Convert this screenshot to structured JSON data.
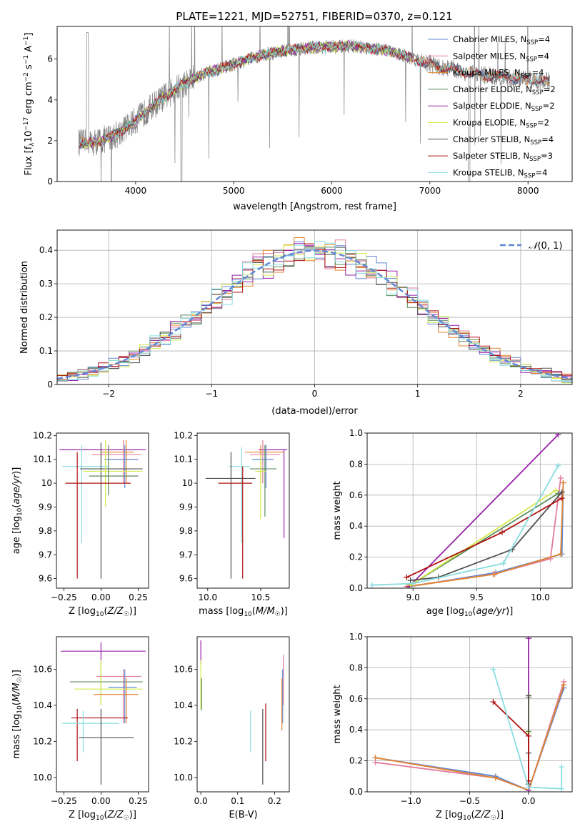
{
  "colors": {
    "chab_miles": "#5f87d6",
    "salp_miles": "#e07d9b",
    "krou_miles": "#e08530",
    "chab_elodie": "#5a8a5a",
    "salp_elodie": "#9922aa",
    "krou_elodie": "#d4ea4a",
    "chab_stelib": "#505050",
    "salp_stelib": "#b01010",
    "krou_stelib": "#88dde0",
    "data": "#808080"
  },
  "chart_data": [
    {
      "id": "spectrum",
      "type": "line",
      "title": "PLATE=1221, MJD=52751, FIBERID=0370, z=0.121",
      "xlabel": "wavelength [Angstrom, rest frame]",
      "ylabel": "Flux [f_λ 10^-17 erg cm^-2 s^-1 A^-1]",
      "xlim": [
        3200,
        8450
      ],
      "ylim": [
        0,
        7.6
      ],
      "xticks": [
        4000,
        5000,
        6000,
        7000,
        8000
      ],
      "yticks": [
        0,
        2,
        4,
        6
      ],
      "grid": false,
      "legend_position": "upper right",
      "legend": [
        {
          "label": "Chabrier MILES, N_SSP=4",
          "color_key": "chab_miles"
        },
        {
          "label": "Salpeter MILES, N_SSP=4",
          "color_key": "salp_miles"
        },
        {
          "label": "Kroupa MILES, N_SSP=4",
          "color_key": "krou_miles"
        },
        {
          "label": "Chabrier ELODIE, N_SSP=2",
          "color_key": "chab_elodie"
        },
        {
          "label": "Salpeter ELODIE, N_SSP=2",
          "color_key": "salp_elodie"
        },
        {
          "label": "Kroupa ELODIE, N_SSP=2",
          "color_key": "krou_elodie"
        },
        {
          "label": "Chabrier STELIB, N_SSP=4",
          "color_key": "chab_stelib"
        },
        {
          "label": "Salpeter STELIB, N_SSP=3",
          "color_key": "salp_stelib"
        },
        {
          "label": "Kroupa STELIB, N_SSP=4",
          "color_key": "krou_stelib"
        }
      ],
      "continuum": {
        "x": [
          3350,
          3500,
          3650,
          3800,
          3950,
          4100,
          4250,
          4400,
          4550,
          4700,
          4850,
          5000,
          5150,
          5300,
          5450,
          5600,
          5750,
          5900,
          6050,
          6200,
          6350,
          6500,
          6650,
          6800,
          6950,
          7100,
          7250,
          7400,
          7550,
          7700,
          7850,
          8000,
          8200
        ],
        "y": [
          2.0,
          1.85,
          2.0,
          2.3,
          2.8,
          3.4,
          4.0,
          4.5,
          4.95,
          5.3,
          5.5,
          5.75,
          6.0,
          6.2,
          6.35,
          6.45,
          6.55,
          6.6,
          6.6,
          6.65,
          6.55,
          6.5,
          6.3,
          6.05,
          5.85,
          5.6,
          5.5,
          5.3,
          5.2,
          5.15,
          5.05,
          5.0,
          4.9
        ]
      }
    },
    {
      "id": "residuals",
      "type": "line",
      "xlabel": "(data-model)/error",
      "ylabel": "Normed distribution",
      "xlim": [
        -2.5,
        2.5
      ],
      "ylim": [
        0,
        0.46
      ],
      "xticks": [
        -2,
        -1,
        0,
        1,
        2
      ],
      "yticks": [
        0.0,
        0.1,
        0.2,
        0.3,
        0.4
      ],
      "grid": true,
      "legend": [
        {
          "label": "N(0,1)",
          "color_key": "chab_miles"
        }
      ],
      "gaussian": {
        "mu": 0,
        "sigma": 1
      }
    },
    {
      "id": "age_vs_Z",
      "type": "scatter",
      "xlabel": "Z [log10(Z/Z☉)]",
      "ylabel": "age [log10(age/yr)]",
      "xlim": [
        -0.3,
        0.32
      ],
      "ylim": [
        9.56,
        10.21
      ],
      "xticks": [
        -0.25,
        0.0,
        0.25
      ],
      "xticklabels": [
        "−0.25",
        "0.00",
        "0.25"
      ],
      "yticks": [
        9.6,
        9.7,
        9.8,
        9.9,
        10.0,
        10.1,
        10.2
      ],
      "points": [
        {
          "k": "salp_elodie",
          "x": 0.0,
          "xe": [
            -0.28,
            0.3
          ],
          "y": 10.14,
          "ye": [
            10.14,
            10.14
          ]
        },
        {
          "k": "salp_miles",
          "x": 0.15,
          "xe": [
            -0.06,
            0.27
          ],
          "y": 10.12,
          "ye": [
            10.0,
            10.18
          ]
        },
        {
          "k": "krou_miles",
          "x": 0.17,
          "xe": [
            0.0,
            0.22
          ],
          "y": 10.13,
          "ye": [
            10.0,
            10.18
          ]
        },
        {
          "k": "chab_miles",
          "x": 0.16,
          "xe": [
            0.02,
            0.25
          ],
          "y": 10.1,
          "ye": [
            9.98,
            10.16
          ]
        },
        {
          "k": "krou_stelib",
          "x": -0.13,
          "xe": [
            -0.26,
            0.05
          ],
          "y": 10.07,
          "ye": [
            9.75,
            10.16
          ]
        },
        {
          "k": "chab_stelib",
          "x": 0.0,
          "xe": [
            -0.14,
            0.28
          ],
          "y": 10.06,
          "ye": [
            9.6,
            10.17
          ]
        },
        {
          "k": "krou_elodie",
          "x": 0.03,
          "xe": [
            -0.12,
            0.28
          ],
          "y": 10.05,
          "ye": [
            9.9,
            10.18
          ]
        },
        {
          "k": "chab_elodie",
          "x": 0.05,
          "xe": [
            -0.08,
            0.25
          ],
          "y": 10.03,
          "ye": [
            9.95,
            10.16
          ]
        },
        {
          "k": "salp_stelib",
          "x": -0.16,
          "xe": [
            -0.24,
            0.2
          ],
          "y": 10.0,
          "ye": [
            9.6,
            10.13
          ]
        }
      ]
    },
    {
      "id": "age_vs_mass",
      "type": "scatter",
      "xlabel": "mass [log10(M/M☉)]",
      "xlim": [
        9.9,
        10.77
      ],
      "ylim": [
        9.56,
        10.21
      ],
      "xticks": [
        10.0,
        10.5
      ],
      "xticklabels": [
        "10.0",
        "10.5"
      ],
      "yticks": [
        9.6,
        9.7,
        9.8,
        9.9,
        10.0,
        10.1,
        10.2
      ],
      "points": [
        {
          "k": "salp_elodie",
          "x": 10.72,
          "xe": [
            10.48,
            10.75
          ],
          "y": 10.14,
          "ye": [
            9.77,
            10.14
          ]
        },
        {
          "k": "krou_miles",
          "x": 10.5,
          "xe": [
            10.35,
            10.72
          ],
          "y": 10.13,
          "ye": [
            10.0,
            10.16
          ]
        },
        {
          "k": "salp_miles",
          "x": 10.52,
          "xe": [
            10.4,
            10.68
          ],
          "y": 10.12,
          "ye": [
            10.0,
            10.18
          ]
        },
        {
          "k": "chab_miles",
          "x": 10.55,
          "xe": [
            10.42,
            10.62
          ],
          "y": 10.1,
          "ye": [
            9.98,
            10.16
          ]
        },
        {
          "k": "krou_stelib",
          "x": 10.32,
          "xe": [
            10.2,
            10.4
          ],
          "y": 10.07,
          "ye": [
            9.75,
            10.15
          ]
        },
        {
          "k": "chab_elodie",
          "x": 10.54,
          "xe": [
            10.4,
            10.65
          ],
          "y": 10.06,
          "ye": [
            9.86,
            10.16
          ]
        },
        {
          "k": "krou_elodie",
          "x": 10.5,
          "xe": [
            10.45,
            10.55
          ],
          "y": 10.05,
          "ye": [
            9.85,
            10.12
          ]
        },
        {
          "k": "chab_stelib",
          "x": 10.22,
          "xe": [
            9.98,
            10.45
          ],
          "y": 10.02,
          "ye": [
            9.6,
            10.13
          ]
        },
        {
          "k": "salp_stelib",
          "x": 10.33,
          "xe": [
            10.1,
            10.42
          ],
          "y": 10.0,
          "ye": [
            9.6,
            10.07
          ]
        }
      ]
    },
    {
      "id": "weight_vs_age",
      "type": "line",
      "xlabel": "age [log10(age/yr)]",
      "ylabel": "mass weight",
      "xlim": [
        8.64,
        10.25
      ],
      "ylim": [
        0,
        1.0
      ],
      "xticks": [
        9.0,
        9.5,
        10.0
      ],
      "xticklabels": [
        "9.0",
        "9.5",
        "10.0"
      ],
      "yticks": [
        0.0,
        0.2,
        0.4,
        0.6,
        0.8,
        1.0
      ],
      "yticklabels": [
        "0.0",
        "0.2",
        "0.4",
        "0.6",
        "0.8",
        "1.0"
      ],
      "grid": true,
      "series": [
        {
          "k": "chab_miles",
          "x": [
            8.97,
            9.65,
            10.17,
            10.18
          ],
          "y": [
            0.01,
            0.1,
            0.22,
            0.68
          ]
        },
        {
          "k": "salp_miles",
          "x": [
            8.95,
            9.63,
            10.08,
            10.16
          ],
          "y": [
            0.01,
            0.09,
            0.19,
            0.71
          ]
        },
        {
          "k": "krou_miles",
          "x": [
            8.96,
            9.64,
            10.16,
            10.18
          ],
          "y": [
            0.01,
            0.09,
            0.22,
            0.68
          ]
        },
        {
          "k": "chab_elodie",
          "x": [
            8.98,
            10.14
          ],
          "y": [
            0.02,
            0.61
          ]
        },
        {
          "k": "salp_elodie",
          "x": [
            8.97,
            10.14
          ],
          "y": [
            0.01,
            0.99
          ]
        },
        {
          "k": "krou_elodie",
          "x": [
            8.98,
            10.12
          ],
          "y": [
            0.02,
            0.63
          ]
        },
        {
          "k": "chab_stelib",
          "x": [
            8.98,
            9.2,
            9.78,
            10.17
          ],
          "y": [
            0.05,
            0.07,
            0.25,
            0.62
          ]
        },
        {
          "k": "salp_stelib",
          "x": [
            8.95,
            9.7,
            10.17
          ],
          "y": [
            0.07,
            0.36,
            0.58
          ]
        },
        {
          "k": "krou_stelib",
          "x": [
            8.68,
            9.0,
            9.71,
            10.14
          ],
          "y": [
            0.02,
            0.03,
            0.16,
            0.79
          ]
        }
      ]
    },
    {
      "id": "mass_vs_Z",
      "type": "scatter",
      "xlabel": "Z [log10(Z/Z☉)]",
      "ylabel": "mass [log10(M/M☉)]",
      "xlim": [
        -0.3,
        0.32
      ],
      "ylim": [
        9.92,
        10.78
      ],
      "xticks": [
        -0.25,
        0.0,
        0.25
      ],
      "xticklabels": [
        "−0.25",
        "0.00",
        "0.25"
      ],
      "yticks": [
        10.0,
        10.2,
        10.4,
        10.6
      ],
      "yticklabels": [
        "10.0",
        "10.2",
        "10.4",
        "10.6"
      ],
      "points": [
        {
          "k": "salp_elodie",
          "x": 0.0,
          "xe": [
            -0.27,
            0.3
          ],
          "y": 10.7,
          "ye": [
            10.65,
            10.75
          ]
        },
        {
          "k": "salp_miles",
          "x": 0.15,
          "xe": [
            -0.03,
            0.27
          ],
          "y": 10.56,
          "ye": [
            10.3,
            10.6
          ]
        },
        {
          "k": "chab_elodie",
          "x": 0.0,
          "xe": [
            -0.21,
            0.28
          ],
          "y": 10.53,
          "ye": [
            10.4,
            10.65
          ]
        },
        {
          "k": "chab_miles",
          "x": 0.16,
          "xe": [
            0.05,
            0.24
          ],
          "y": 10.5,
          "ye": [
            10.3,
            10.6
          ]
        },
        {
          "k": "krou_elodie",
          "x": 0.0,
          "xe": [
            -0.18,
            0.28
          ],
          "y": 10.49,
          "ye": [
            10.4,
            10.65
          ]
        },
        {
          "k": "krou_miles",
          "x": 0.17,
          "xe": [
            -0.05,
            0.25
          ],
          "y": 10.46,
          "ye": [
            10.3,
            10.55
          ]
        },
        {
          "k": "salp_stelib",
          "x": -0.16,
          "xe": [
            -0.2,
            0.18
          ],
          "y": 10.33,
          "ye": [
            10.09,
            10.38
          ]
        },
        {
          "k": "krou_stelib",
          "x": -0.12,
          "xe": [
            -0.26,
            0.12
          ],
          "y": 10.3,
          "ye": [
            10.14,
            10.37
          ]
        },
        {
          "k": "chab_stelib",
          "x": 0.0,
          "xe": [
            -0.15,
            0.22
          ],
          "y": 10.22,
          "ye": [
            9.96,
            10.38
          ]
        }
      ]
    },
    {
      "id": "mass_vs_ebv",
      "type": "scatter",
      "xlabel": "E(B-V)",
      "xlim": [
        -0.01,
        0.24
      ],
      "ylim": [
        9.92,
        10.78
      ],
      "xticks": [
        0.0,
        0.1,
        0.2
      ],
      "xticklabels": [
        "0.0",
        "0.1",
        "0.2"
      ],
      "yticks": [
        10.0,
        10.2,
        10.4,
        10.6
      ],
      "yticklabels": [
        "10.0",
        "10.2",
        "10.4",
        "10.6"
      ],
      "points": [
        {
          "k": "salp_elodie",
          "x": 0.0,
          "xe": [
            0.0,
            0.0
          ],
          "y": 10.7,
          "ye": [
            10.63,
            10.76
          ]
        },
        {
          "k": "krou_elodie",
          "x": 0.0,
          "xe": [
            0.0,
            0.0
          ],
          "y": 10.5,
          "ye": [
            10.38,
            10.65
          ]
        },
        {
          "k": "chab_elodie",
          "x": 0.002,
          "xe": [
            0.002,
            0.002
          ],
          "y": 10.45,
          "ye": [
            10.37,
            10.55
          ]
        },
        {
          "k": "salp_miles",
          "x": 0.224,
          "xe": [
            0.224,
            0.224
          ],
          "y": 10.55,
          "ye": [
            10.4,
            10.68
          ]
        },
        {
          "k": "chab_miles",
          "x": 0.222,
          "xe": [
            0.222,
            0.222
          ],
          "y": 10.5,
          "ye": [
            10.3,
            10.6
          ]
        },
        {
          "k": "krou_miles",
          "x": 0.22,
          "xe": [
            0.22,
            0.22
          ],
          "y": 10.45,
          "ye": [
            10.26,
            10.55
          ]
        },
        {
          "k": "krou_stelib",
          "x": 0.135,
          "xe": [
            0.135,
            0.135
          ],
          "y": 10.3,
          "ye": [
            10.14,
            10.37
          ]
        },
        {
          "k": "chab_stelib",
          "x": 0.168,
          "xe": [
            0.168,
            0.168
          ],
          "y": 10.22,
          "ye": [
            9.96,
            10.38
          ]
        },
        {
          "k": "salp_stelib",
          "x": 0.176,
          "xe": [
            0.176,
            0.176
          ],
          "y": 10.3,
          "ye": [
            10.09,
            10.41
          ]
        }
      ]
    },
    {
      "id": "weight_vs_Z",
      "type": "line",
      "xlabel": "Z [log10(Z/Z☉)]",
      "ylabel": "mass weight",
      "xlim": [
        -1.37,
        0.37
      ],
      "ylim": [
        0,
        1.0
      ],
      "xticks": [
        -1.0,
        -0.5,
        0.0
      ],
      "xticklabels": [
        "−1.0",
        "−0.5",
        "0.0"
      ],
      "yticks": [
        0.0,
        0.2,
        0.4,
        0.6,
        0.8,
        1.0
      ],
      "yticklabels": [
        "0.0",
        "0.2",
        "0.4",
        "0.6",
        "0.8",
        "1.0"
      ],
      "grid": true,
      "series": [
        {
          "k": "chab_miles",
          "x": [
            -1.3,
            -0.28,
            0.0,
            0.3
          ],
          "y": [
            0.22,
            0.1,
            0.01,
            0.67
          ]
        },
        {
          "k": "salp_miles",
          "x": [
            -1.3,
            -0.28,
            0.0,
            0.3
          ],
          "y": [
            0.19,
            0.09,
            0.01,
            0.71
          ]
        },
        {
          "k": "krou_miles",
          "x": [
            -1.3,
            -0.28,
            0.0,
            0.3
          ],
          "y": [
            0.22,
            0.09,
            0.01,
            0.69
          ]
        },
        {
          "k": "chab_elodie",
          "x": [
            0.0,
            0.0
          ],
          "y": [
            0.39,
            0.61
          ]
        },
        {
          "k": "salp_elodie",
          "x": [
            0.0,
            0.0
          ],
          "y": [
            0.01,
            0.99
          ]
        },
        {
          "k": "krou_elodie",
          "x": [
            0.0,
            0.0
          ],
          "y": [
            0.38,
            0.62
          ]
        },
        {
          "k": "chab_stelib",
          "x": [
            0.0,
            0.0,
            0.0,
            0.0
          ],
          "y": [
            0.05,
            0.25,
            0.62,
            0.07
          ]
        },
        {
          "k": "salp_stelib",
          "x": [
            -0.3,
            0.0,
            0.0
          ],
          "y": [
            0.58,
            0.36,
            0.07
          ]
        },
        {
          "k": "krou_stelib",
          "x": [
            -0.3,
            0.0,
            0.28,
            0.28
          ],
          "y": [
            0.79,
            0.03,
            0.02,
            0.16
          ]
        }
      ]
    }
  ]
}
